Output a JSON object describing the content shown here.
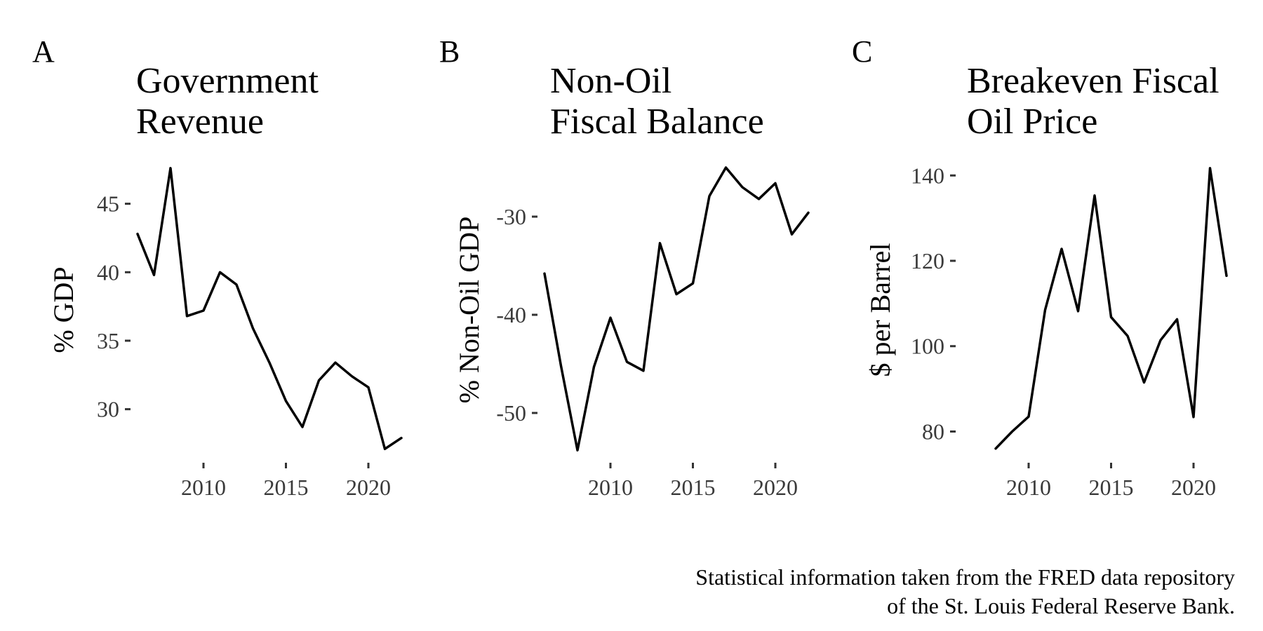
{
  "chart_data": [
    {
      "type": "line",
      "panel": "A",
      "title": [
        "Government",
        "Revenue"
      ],
      "xlabel": "",
      "ylabel": "% GDP",
      "xlim": [
        2006,
        2022
      ],
      "ylim": [
        26.5,
        48
      ],
      "xticks": [
        2010,
        2015,
        2020
      ],
      "yticks": [
        30,
        35,
        40,
        45
      ],
      "x": [
        2006,
        2007,
        2008,
        2009,
        2010,
        2011,
        2012,
        2013,
        2014,
        2015,
        2016,
        2017,
        2018,
        2019,
        2020,
        2021,
        2022
      ],
      "y": [
        42.8,
        39.8,
        47.6,
        36.8,
        37.2,
        40.0,
        39.1,
        35.9,
        33.4,
        30.6,
        28.7,
        32.1,
        33.4,
        32.4,
        31.6,
        27.1,
        27.9
      ]
    },
    {
      "type": "line",
      "panel": "B",
      "title": [
        "Non-Oil",
        "Fiscal Balance"
      ],
      "xlabel": "",
      "ylabel": "% Non-Oil GDP",
      "xlim": [
        2006,
        2022
      ],
      "ylim": [
        -54.5,
        -24.5
      ],
      "xticks": [
        2010,
        2015,
        2020
      ],
      "yticks": [
        -50,
        -40,
        -30
      ],
      "x": [
        2006,
        2007,
        2008,
        2009,
        2010,
        2011,
        2012,
        2013,
        2014,
        2015,
        2016,
        2017,
        2018,
        2019,
        2020,
        2021,
        2022
      ],
      "y": [
        -35.8,
        -45.2,
        -53.8,
        -45.3,
        -40.3,
        -44.8,
        -45.7,
        -32.7,
        -37.9,
        -36.8,
        -27.9,
        -25.0,
        -27.0,
        -28.2,
        -26.6,
        -31.8,
        -29.6
      ]
    },
    {
      "type": "line",
      "panel": "C",
      "title": [
        "Breakeven Fiscal",
        "Oil Price"
      ],
      "xlabel": "",
      "ylabel": "$ per Barrel",
      "xlim": [
        2006,
        2022
      ],
      "ylim": [
        74,
        143
      ],
      "xticks": [
        2010,
        2015,
        2020
      ],
      "yticks": [
        80,
        100,
        120,
        140
      ],
      "x": [
        2008,
        2009,
        2010,
        2011,
        2012,
        2013,
        2014,
        2015,
        2016,
        2017,
        2018,
        2019,
        2020,
        2021,
        2022
      ],
      "y": [
        76.0,
        80.0,
        83.5,
        108.5,
        122.8,
        108.2,
        135.3,
        106.8,
        102.4,
        91.5,
        101.4,
        106.3,
        83.4,
        141.7,
        116.5
      ]
    }
  ],
  "caption": [
    "Statistical information taken from the FRED data repository",
    "of the St. Louis Federal Reserve Bank."
  ]
}
